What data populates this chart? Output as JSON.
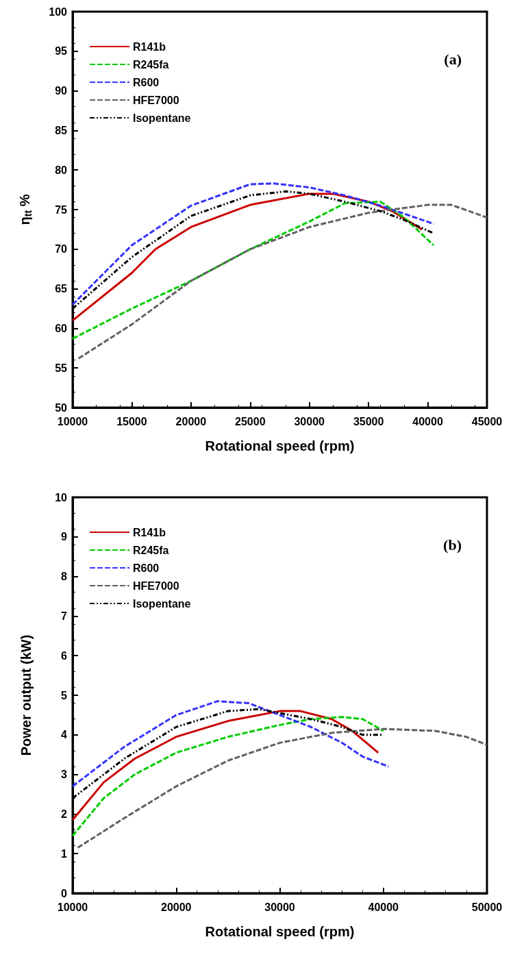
{
  "chart_data": [
    {
      "type": "line",
      "xlabel": "Rotational speed (rpm)",
      "ylabel": "η$_{tt}$ %",
      "annotations": [
        "(a)"
      ],
      "legend": "top left",
      "marker": "none",
      "grid": false,
      "xlim": [
        10000,
        45000
      ],
      "xticks": [
        10000,
        15000,
        20000,
        25000,
        30000,
        35000,
        40000,
        45000
      ],
      "ylim": [
        50,
        100
      ],
      "yticks": [
        50,
        55,
        60,
        65,
        70,
        75,
        80,
        85,
        90,
        95,
        100
      ],
      "series": [
        {
          "name": "R141b",
          "color": "#cc0000",
          "line_style": "solid",
          "x": [
            10000,
            15000,
            17000,
            20000,
            25000,
            30000,
            32000,
            35000,
            37000,
            39500
          ],
          "values": [
            61,
            67,
            70,
            72.8,
            75.6,
            77,
            77,
            76,
            74.8,
            72.5
          ]
        },
        {
          "name": "R245fa",
          "color": "#00cc00",
          "line_style": "dashed",
          "x": [
            10000,
            15000,
            20000,
            25000,
            30000,
            33000,
            36000,
            38000,
            40500
          ],
          "values": [
            58.7,
            62.5,
            66,
            70,
            73.5,
            75.8,
            76,
            74,
            70.5
          ]
        },
        {
          "name": "R600",
          "color": "#3333ff",
          "line_style": "dashed",
          "x": [
            10000,
            12000,
            15000,
            20000,
            25000,
            27000,
            30000,
            33000,
            36000,
            40500
          ],
          "values": [
            63,
            66,
            70.5,
            75.5,
            78.2,
            78.3,
            77.8,
            76.8,
            75.5,
            73.2
          ]
        },
        {
          "name": "HFE7000",
          "color": "#606060",
          "line_style": "dashed",
          "x": [
            10500,
            15000,
            20000,
            25000,
            30000,
            35000,
            40000,
            42000,
            45000
          ],
          "values": [
            56.2,
            60.5,
            66,
            70,
            72.8,
            74.6,
            75.6,
            75.6,
            74
          ]
        },
        {
          "name": "Isopentane",
          "color": "#000000",
          "line_style": "dotted",
          "x": [
            10000,
            15000,
            20000,
            25000,
            28000,
            30000,
            33000,
            36000,
            38000,
            40500
          ],
          "values": [
            62.5,
            69,
            74.2,
            76.8,
            77.3,
            77,
            76,
            74.8,
            73.7,
            72
          ]
        }
      ]
    },
    {
      "type": "line",
      "xlabel": "Rotational speed (rpm)",
      "ylabel": "Power output (kW)",
      "annotations": [
        "(b)"
      ],
      "legend": "top left",
      "marker": "none",
      "grid": false,
      "xlim": [
        10000,
        50000
      ],
      "xticks": [
        10000,
        20000,
        30000,
        40000,
        50000
      ],
      "ylim": [
        0,
        10
      ],
      "yticks": [
        0,
        1,
        2,
        3,
        4,
        5,
        6,
        7,
        8,
        9,
        10
      ],
      "series": [
        {
          "name": "R141b",
          "color": "#cc0000",
          "line_style": "solid",
          "x": [
            10000,
            13000,
            16000,
            20000,
            25000,
            30000,
            32000,
            35000,
            37000,
            39500
          ],
          "values": [
            1.85,
            2.8,
            3.4,
            3.95,
            4.35,
            4.6,
            4.6,
            4.4,
            4.1,
            3.55
          ]
        },
        {
          "name": "R245fa",
          "color": "#00cc00",
          "line_style": "dashed",
          "x": [
            10000,
            13000,
            16000,
            20000,
            25000,
            30000,
            33000,
            36000,
            38000,
            40000
          ],
          "values": [
            1.45,
            2.4,
            3.0,
            3.55,
            3.95,
            4.25,
            4.4,
            4.45,
            4.4,
            4.1
          ]
        },
        {
          "name": "R600",
          "color": "#3333ff",
          "line_style": "dashed",
          "x": [
            10000,
            15000,
            20000,
            24000,
            27000,
            30000,
            33000,
            36000,
            38000,
            40500
          ],
          "values": [
            2.7,
            3.7,
            4.5,
            4.85,
            4.8,
            4.5,
            4.2,
            3.8,
            3.45,
            3.2
          ]
        },
        {
          "name": "HFE7000",
          "color": "#606060",
          "line_style": "dashed",
          "x": [
            10500,
            15000,
            20000,
            25000,
            30000,
            35000,
            40000,
            45000,
            48000,
            50000
          ],
          "values": [
            1.15,
            1.9,
            2.7,
            3.35,
            3.8,
            4.05,
            4.15,
            4.1,
            3.95,
            3.75
          ]
        },
        {
          "name": "Isopentane",
          "color": "#000000",
          "line_style": "dotted",
          "x": [
            10000,
            15000,
            20000,
            25000,
            28000,
            30000,
            33000,
            36000,
            38000,
            40000
          ],
          "values": [
            2.4,
            3.4,
            4.2,
            4.6,
            4.65,
            4.55,
            4.4,
            4.2,
            4.0,
            4.0
          ]
        }
      ]
    }
  ]
}
